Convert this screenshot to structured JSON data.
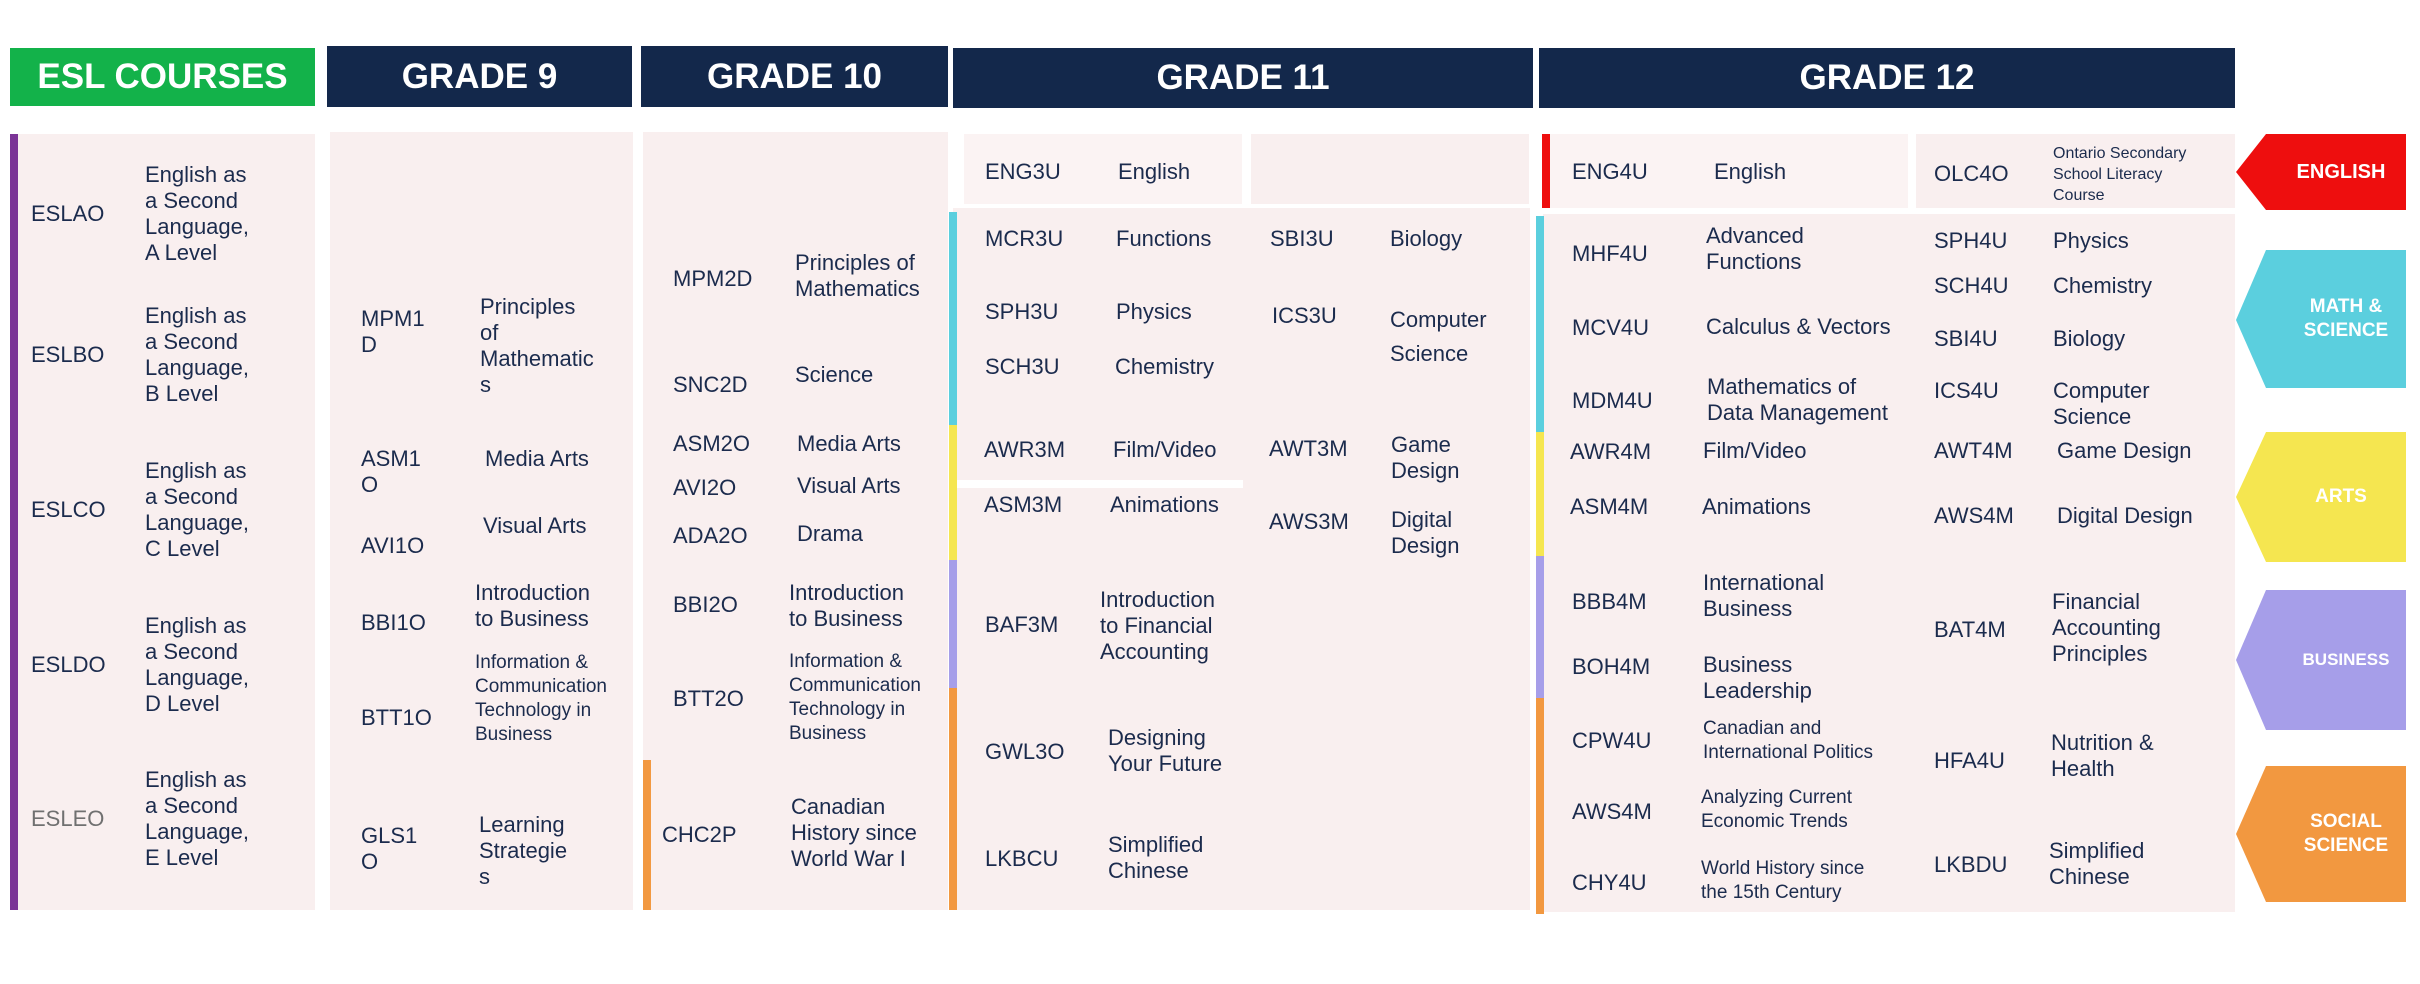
{
  "headers": {
    "esl": "ESL COURSES",
    "g9": "GRADE 9",
    "g10": "GRADE 10",
    "g11": "GRADE 11",
    "g12": "GRADE 12"
  },
  "colors": {
    "navy": "#13284b",
    "esl_green": "#13b24a",
    "panel": "#f9efef",
    "english": "#ee0e0e",
    "math_science": "#5bcfde",
    "arts": "#f5e650",
    "business": "#a69ee9",
    "social_science": "#f29840",
    "esl_bar": "#7b3496"
  },
  "esl": [
    {
      "code": "ESLAO",
      "name": "English as\na  Second\nLanguage,\nA  Level"
    },
    {
      "code": "ESLBO",
      "name": "English as\na  Second\nLanguage,\nB  Level"
    },
    {
      "code": "ESLCO",
      "name": "English as\na  Second\nLanguage,\nC  Level"
    },
    {
      "code": "ESLDO",
      "name": "English as\na  Second\nLanguage,\nD  Level"
    },
    {
      "code": "ESLEO",
      "name": "English as\na  Second\nLanguage,\nE  Level"
    }
  ],
  "g9": [
    {
      "code": "MPM1\nD",
      "name": "Principles\nof\nMathematic\ns"
    },
    {
      "code": "ASM1\nO",
      "name": "Media Arts"
    },
    {
      "code": "AVI1O",
      "name": "Visual Arts"
    },
    {
      "code": "BBI1O",
      "name": "Introduction\nto  Business"
    },
    {
      "code": "BTT1O",
      "name": "Information &\nCommunication\nTechnology in\nBusiness"
    },
    {
      "code": "GLS1\nO",
      "name": "Learning\nStrategie\ns"
    }
  ],
  "g10": [
    {
      "code": "MPM2D",
      "name": "Principles of\nMathematics"
    },
    {
      "code": "SNC2D",
      "name": "Science"
    },
    {
      "code": "ASM2O",
      "name": "Media Arts"
    },
    {
      "code": "AVI2O",
      "name": "Visual Arts"
    },
    {
      "code": "ADA2O",
      "name": "Drama"
    },
    {
      "code": "BBI2O",
      "name": "Introduction\nto Business"
    },
    {
      "code": "BTT2O",
      "name": "Information &\nCommunication\nTechnology in\nBusiness"
    },
    {
      "code": "CHC2P",
      "name": "Canadian\nHistory since\nWorld War  I"
    }
  ],
  "g11": [
    {
      "code": "ENG3U",
      "name": "English"
    },
    {
      "code": "MCR3U",
      "name": "Functions"
    },
    {
      "code": "SBI3U",
      "name": "Biology"
    },
    {
      "code": "SPH3U",
      "name": "Physics"
    },
    {
      "code": "ICS3U",
      "name": "Computer\nScience"
    },
    {
      "code": "SCH3U",
      "name": "Chemistry"
    },
    {
      "code": "AWR3M",
      "name": "Film/Video"
    },
    {
      "code": "AWT3M",
      "name": "Game\nDesign"
    },
    {
      "code": "ASM3M",
      "name": "Animations"
    },
    {
      "code": "AWS3M",
      "name": "Digital\nDesign"
    },
    {
      "code": "BAF3M",
      "name": "Introduction\nto Financial\nAccounting"
    },
    {
      "code": "GWL3O",
      "name": "Designing\nYour Future"
    },
    {
      "code": "LKBCU",
      "name": "Simplified\nChinese"
    }
  ],
  "g12": [
    {
      "code": "ENG4U",
      "name": "English"
    },
    {
      "code": "OLC4O",
      "name": "Ontario Secondary\nSchool Literacy\nCourse"
    },
    {
      "code": "MHF4U",
      "name": "Advanced\nFunctions"
    },
    {
      "code": "SPH4U",
      "name": "Physics"
    },
    {
      "code": "SCH4U",
      "name": "Chemistry"
    },
    {
      "code": "MCV4U",
      "name": "Calculus & Vectors"
    },
    {
      "code": "SBI4U",
      "name": "Biology"
    },
    {
      "code": "MDM4U",
      "name": "Mathematics of\nData Management"
    },
    {
      "code": "ICS4U",
      "name": "Computer\nScience"
    },
    {
      "code": "AWR4M",
      "name": "Film/Video"
    },
    {
      "code": "AWT4M",
      "name": "Game  Design"
    },
    {
      "code": "ASM4M",
      "name": "Animations"
    },
    {
      "code": "AWS4M",
      "name": "Digital Design"
    },
    {
      "code": "BBB4M",
      "name": "International\nBusiness"
    },
    {
      "code": "BAT4M",
      "name": "Financial\nAccounting\nPrinciples"
    },
    {
      "code": "BOH4M",
      "name": "Business\nLeadership"
    },
    {
      "code": "CPW4U",
      "name": "Canadian and\nInternational Politics"
    },
    {
      "code": "HFA4U",
      "name": "Nutrition &\nHealth"
    },
    {
      "code": "AWS4M",
      "name": "Analyzing Current\nEconomic Trends"
    },
    {
      "code": "CHY4U",
      "name": "World History since\nthe 15th Century"
    },
    {
      "code": "LKBDU",
      "name": "Simplified\nChinese"
    }
  ],
  "legend": {
    "english": "ENGLISH",
    "math_science": "MATH &\nSCIENCE",
    "arts": "ARTS",
    "business": "BUSINESS",
    "social_science": "SOCIAL\nSCIENCE"
  }
}
